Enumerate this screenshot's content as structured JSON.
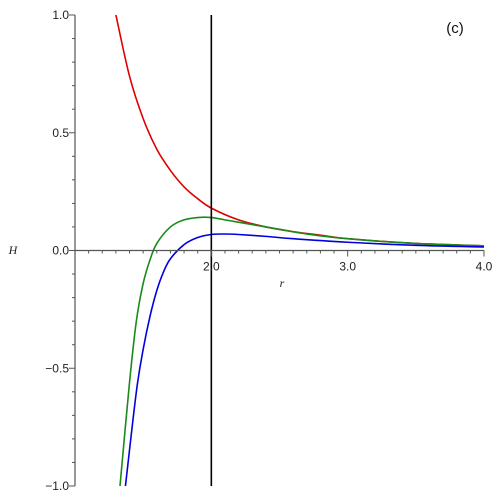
{
  "chart_data": {
    "type": "line",
    "panel_label": "(c)",
    "xlabel": "r",
    "ylabel": "H",
    "xlim": [
      1.0,
      4.0
    ],
    "ylim": [
      -1.0,
      1.0
    ],
    "x_ticks": [
      2.0,
      3.0,
      4.0
    ],
    "x_tick_labels": [
      "2.0",
      "3.0",
      "4.0"
    ],
    "y_ticks": [
      -1.0,
      -0.5,
      0.0,
      0.5,
      1.0
    ],
    "y_tick_labels": [
      "−1.0",
      "−0.5",
      "0.0",
      "0.5",
      "1.0"
    ],
    "vertical_line_x": 2.0,
    "grid": false,
    "series": [
      {
        "color": "#e00000",
        "points": [
          [
            1.3,
            1.0
          ],
          [
            1.4,
            0.74
          ],
          [
            1.5,
            0.56
          ],
          [
            1.6,
            0.43
          ],
          [
            1.7,
            0.34
          ],
          [
            1.8,
            0.27
          ],
          [
            1.9,
            0.22
          ],
          [
            2.0,
            0.18
          ],
          [
            2.2,
            0.13
          ],
          [
            2.4,
            0.1
          ],
          [
            2.6,
            0.08
          ],
          [
            2.8,
            0.065
          ],
          [
            3.0,
            0.05
          ],
          [
            3.5,
            0.03
          ],
          [
            4.0,
            0.02
          ]
        ]
      },
      {
        "color": "#1a8a1a",
        "points": [
          [
            1.33,
            -1.0
          ],
          [
            1.4,
            -0.56
          ],
          [
            1.45,
            -0.3
          ],
          [
            1.5,
            -0.14
          ],
          [
            1.55,
            -0.04
          ],
          [
            1.6,
            0.03
          ],
          [
            1.7,
            0.1
          ],
          [
            1.8,
            0.13
          ],
          [
            1.9,
            0.14
          ],
          [
            2.0,
            0.14
          ],
          [
            2.1,
            0.13
          ],
          [
            2.3,
            0.11
          ],
          [
            2.5,
            0.09
          ],
          [
            2.7,
            0.07
          ],
          [
            3.0,
            0.05
          ],
          [
            3.5,
            0.03
          ],
          [
            4.0,
            0.02
          ]
        ]
      },
      {
        "color": "#0000e0",
        "points": [
          [
            1.37,
            -1.0
          ],
          [
            1.45,
            -0.6
          ],
          [
            1.5,
            -0.42
          ],
          [
            1.55,
            -0.28
          ],
          [
            1.6,
            -0.17
          ],
          [
            1.65,
            -0.09
          ],
          [
            1.7,
            -0.035
          ],
          [
            1.8,
            0.025
          ],
          [
            1.9,
            0.055
          ],
          [
            2.0,
            0.068
          ],
          [
            2.1,
            0.07
          ],
          [
            2.2,
            0.068
          ],
          [
            2.4,
            0.06
          ],
          [
            2.6,
            0.05
          ],
          [
            3.0,
            0.035
          ],
          [
            3.5,
            0.022
          ],
          [
            4.0,
            0.015
          ]
        ]
      }
    ]
  }
}
